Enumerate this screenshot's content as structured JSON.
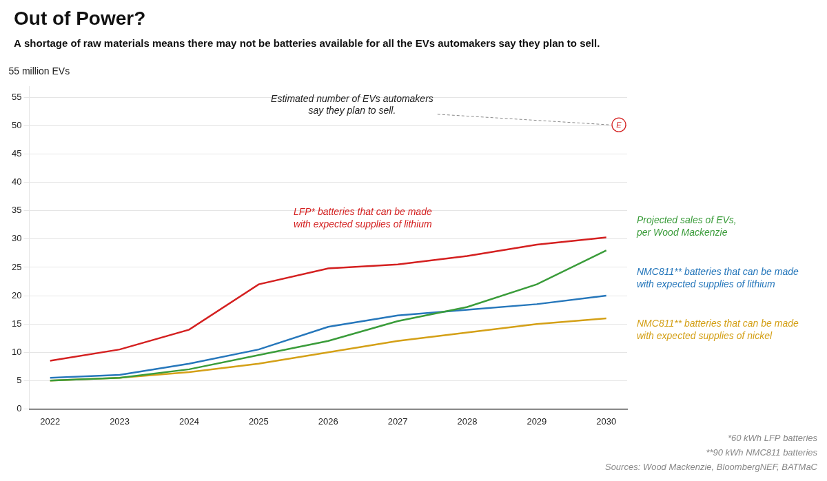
{
  "chart_data": {
    "type": "line",
    "title": "Out of Power?",
    "subtitle": "A shortage of raw materials means there may not be batteries available for all the EVs automakers say they plan to sell.",
    "ylabel": "55 million EVs",
    "x": [
      2022,
      2023,
      2024,
      2025,
      2026,
      2027,
      2028,
      2029,
      2030
    ],
    "xlim": [
      2021.7,
      2030.3
    ],
    "xticks": [
      2022,
      2023,
      2024,
      2025,
      2026,
      2027,
      2028,
      2029,
      2030
    ],
    "ylim": [
      0,
      57
    ],
    "yticks": [
      0,
      5,
      10,
      15,
      20,
      25,
      30,
      35,
      40,
      45,
      50,
      55
    ],
    "grid": true,
    "series": [
      {
        "name": "LFP* batteries that can be made\nwith expected supplies of lithium",
        "color": "#d42020",
        "values": [
          8.5,
          10.5,
          14.0,
          22.0,
          24.8,
          25.5,
          27.0,
          29.0,
          30.3
        ]
      },
      {
        "name": "Projected sales of EVs,\nper Wood Mackenzie",
        "color": "#3a9c3a",
        "values": [
          5.0,
          5.5,
          7.0,
          9.5,
          12.0,
          15.5,
          18.0,
          22.0,
          28.0
        ]
      },
      {
        "name": "NMC811** batteries that can be made\nwith expected supplies of lithium",
        "color": "#2677bb",
        "values": [
          5.5,
          6.0,
          8.0,
          10.5,
          14.5,
          16.5,
          17.5,
          18.5,
          20.0
        ]
      },
      {
        "name": "NMC811** batteries that can be made\nwith expected supplies of nickel",
        "color": "#d4a017",
        "values": [
          5.0,
          5.5,
          6.5,
          8.0,
          10.0,
          12.0,
          13.5,
          15.0,
          16.0
        ]
      }
    ],
    "annotations": [
      "Estimated number of EVs automakers\nsay they plan to sell.",
      "E"
    ],
    "footnotes": [
      "*60 kWh LFP batteries",
      "**90 kWh NMC811 batteries",
      "Sources: Wood Mackenzie, BloombergNEF, BATMaC"
    ]
  }
}
